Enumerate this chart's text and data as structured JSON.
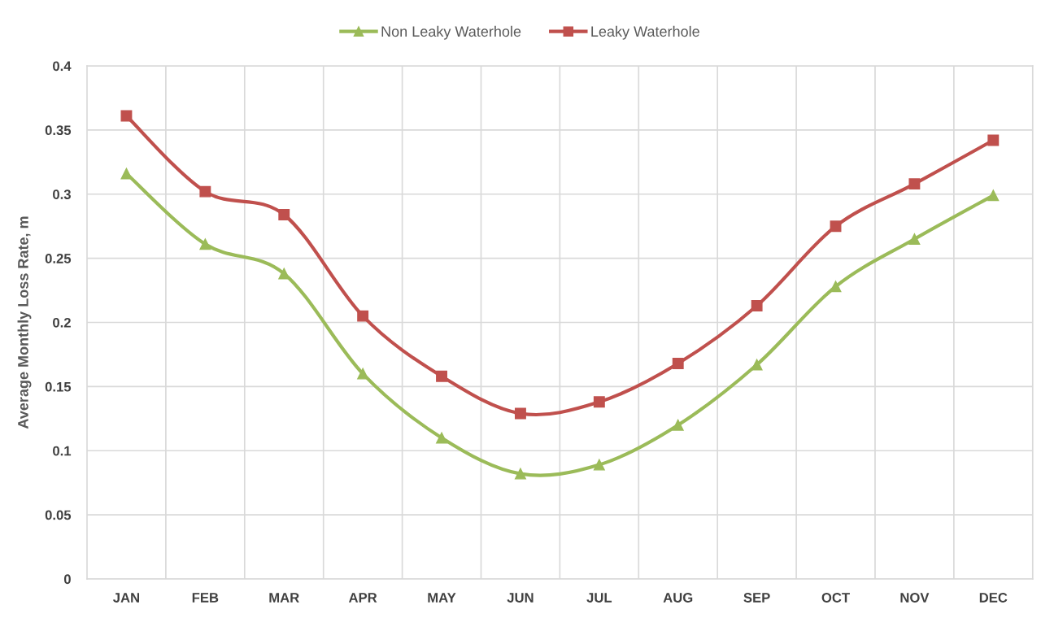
{
  "chart_data": {
    "type": "line",
    "ylabel": "Average Monthly Loss Rate, m",
    "categories": [
      "JAN",
      "FEB",
      "MAR",
      "APR",
      "MAY",
      "JUN",
      "JUL",
      "AUG",
      "SEP",
      "OCT",
      "NOV",
      "DEC"
    ],
    "series": [
      {
        "name": "Non Leaky Waterhole",
        "color": "#9bbb59",
        "marker": "triangle",
        "values": [
          0.316,
          0.261,
          0.238,
          0.16,
          0.11,
          0.082,
          0.089,
          0.12,
          0.167,
          0.228,
          0.265,
          0.299
        ]
      },
      {
        "name": "Leaky Waterhole",
        "color": "#c0504d",
        "marker": "square",
        "values": [
          0.361,
          0.302,
          0.284,
          0.205,
          0.158,
          0.129,
          0.138,
          0.168,
          0.213,
          0.275,
          0.308,
          0.342
        ]
      }
    ],
    "ylim": [
      0,
      0.4
    ],
    "yticks": [
      0,
      0.05,
      0.1,
      0.15,
      0.2,
      0.25,
      0.3,
      0.35,
      0.4
    ],
    "grid": true,
    "legend": "top",
    "line_style": "solid"
  }
}
